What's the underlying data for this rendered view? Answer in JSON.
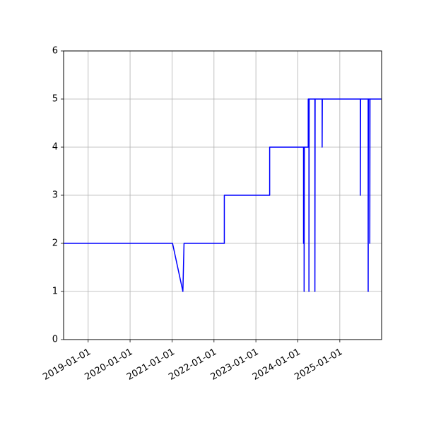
{
  "chart_data": {
    "type": "line",
    "title": "",
    "xlabel": "",
    "ylabel": "",
    "x_axis": {
      "scale": "date",
      "range": [
        "2018-06-01",
        "2025-12-31"
      ],
      "ticks": [
        "2019-01-01",
        "2020-01-01",
        "2021-01-01",
        "2022-01-01",
        "2023-01-01",
        "2024-01-01",
        "2025-01-01"
      ],
      "tick_labels": [
        "2019-01-01",
        "2020-01-01",
        "2021-01-01",
        "2022-01-01",
        "2023-01-01",
        "2024-01-01",
        "2025-01-01"
      ]
    },
    "y_axis": {
      "range": [
        0,
        6
      ],
      "ticks": [
        0,
        1,
        2,
        3,
        4,
        5,
        6
      ],
      "tick_labels": [
        "0",
        "1",
        "2",
        "3",
        "4",
        "5",
        "6"
      ]
    },
    "grid": true,
    "legend": "none",
    "series": [
      {
        "color": "#0000ff",
        "points": [
          [
            "2018-06-01",
            2
          ],
          [
            "2021-01-05",
            2
          ],
          [
            "2021-04-05",
            1
          ],
          [
            "2021-04-15",
            2
          ],
          [
            "2022-04-01",
            2
          ],
          [
            "2022-04-01",
            3
          ],
          [
            "2023-05-01",
            3
          ],
          [
            "2023-05-01",
            4
          ],
          [
            "2024-02-20",
            4
          ],
          [
            "2024-02-20",
            2
          ],
          [
            "2024-02-22",
            4
          ],
          [
            "2024-02-25",
            4
          ],
          [
            "2024-02-25",
            1
          ],
          [
            "2024-02-27",
            4
          ],
          [
            "2024-04-01",
            4
          ],
          [
            "2024-04-01",
            5
          ],
          [
            "2024-04-07",
            5
          ],
          [
            "2024-04-07",
            1
          ],
          [
            "2024-04-09",
            5
          ],
          [
            "2024-05-29",
            5
          ],
          [
            "2024-05-29",
            1
          ],
          [
            "2024-05-31",
            5
          ],
          [
            "2024-07-31",
            5
          ],
          [
            "2024-07-31",
            4
          ],
          [
            "2024-08-02",
            5
          ],
          [
            "2025-06-29",
            5
          ],
          [
            "2025-06-29",
            3
          ],
          [
            "2025-07-01",
            5
          ],
          [
            "2025-09-05",
            5
          ],
          [
            "2025-09-05",
            1
          ],
          [
            "2025-09-07",
            5
          ],
          [
            "2025-09-19",
            5
          ],
          [
            "2025-09-19",
            2
          ],
          [
            "2025-09-21",
            5
          ],
          [
            "2025-12-31",
            5
          ]
        ]
      }
    ]
  }
}
